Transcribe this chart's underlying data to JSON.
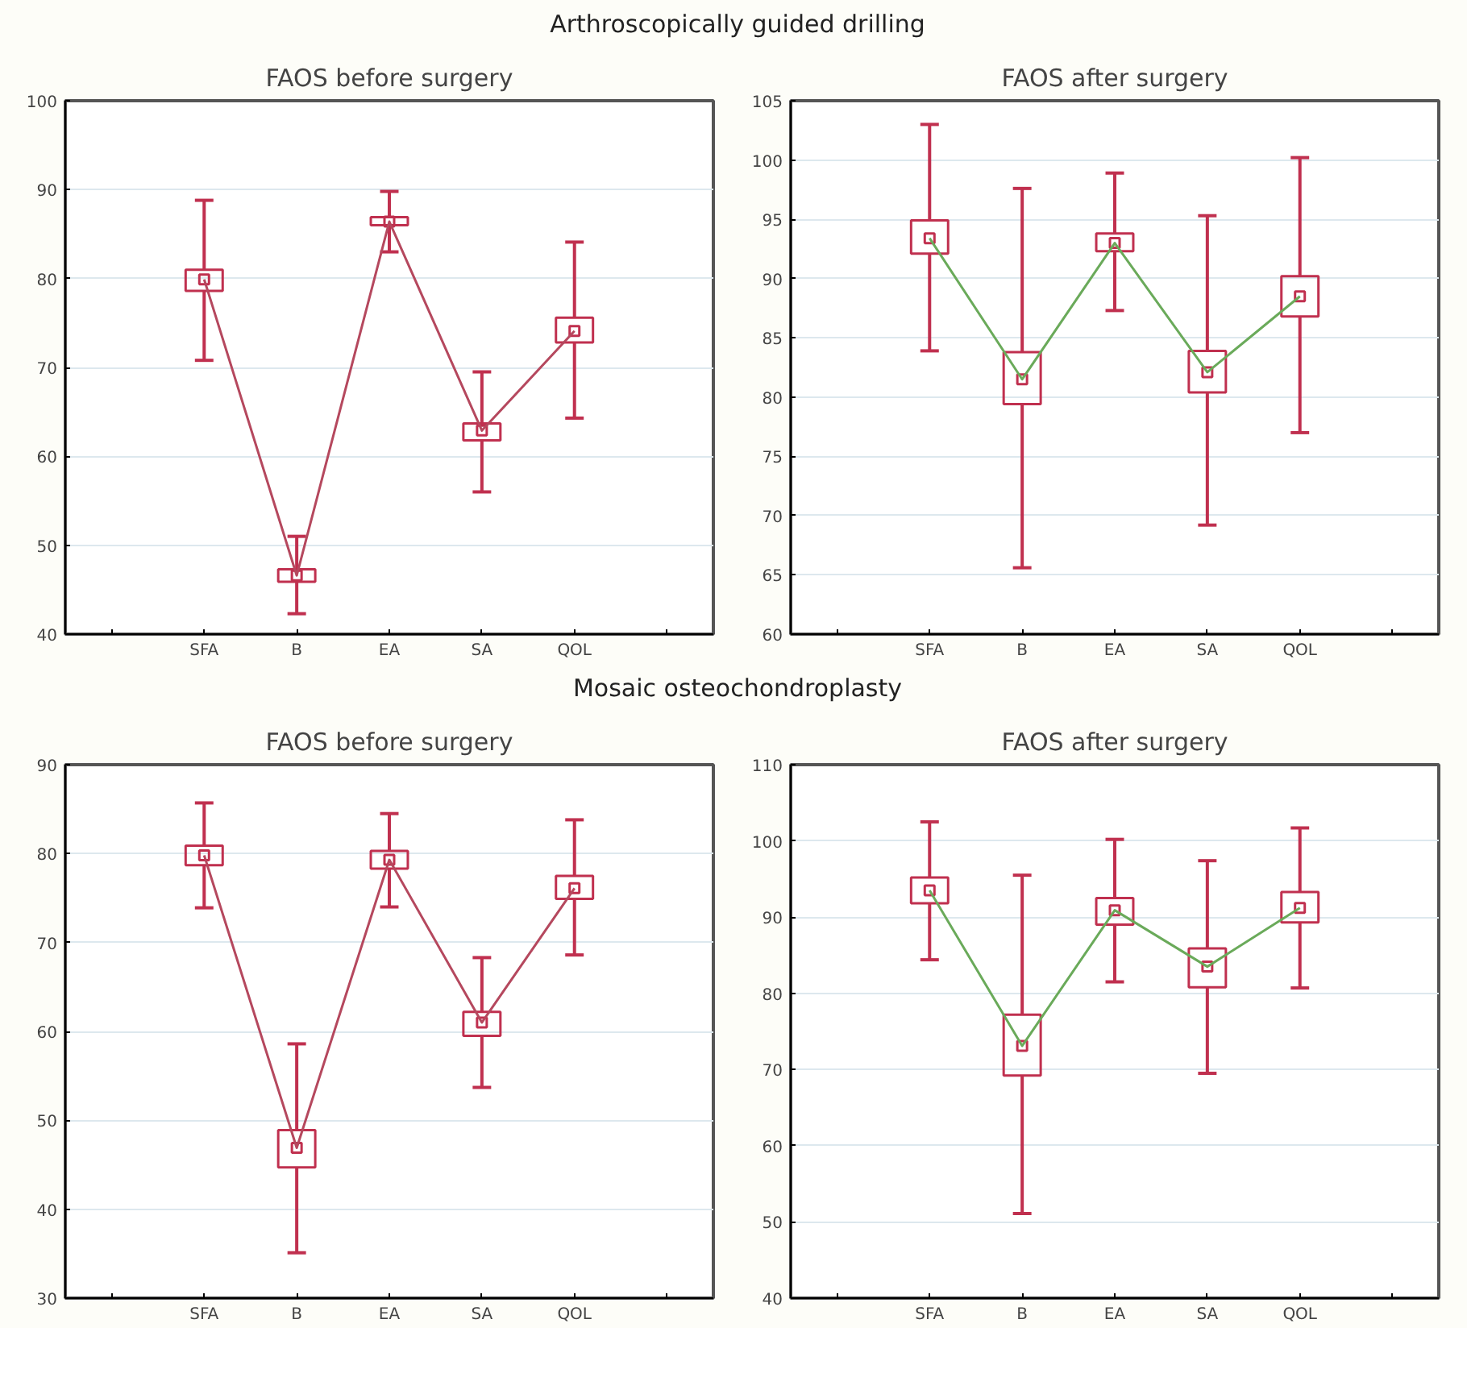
{
  "chart_data": [
    {
      "type": "box",
      "subtitle": "Arthroscopically guided drilling",
      "title": "FAOS before surgery",
      "categories": [
        null,
        "SFA",
        "B",
        "EA",
        "SA",
        "QOL",
        null
      ],
      "ylim": [
        40,
        100
      ],
      "yticks": [
        40,
        50,
        60,
        70,
        80,
        90,
        100
      ],
      "grid": "y",
      "series": [
        {
          "color": "#c0304f",
          "boxes": [
            null,
            {
              "low": 70.8,
              "q1": 78.6,
              "median": 79.9,
              "q3": 81.0,
              "high": 88.8
            },
            {
              "low": 42.3,
              "q1": 45.9,
              "median": 46.6,
              "q3": 47.3,
              "high": 51.0
            },
            {
              "low": 83.0,
              "q1": 86.0,
              "median": 86.4,
              "q3": 86.9,
              "high": 89.8
            },
            {
              "low": 56.0,
              "q1": 61.8,
              "median": 62.9,
              "q3": 63.7,
              "high": 69.5
            },
            {
              "low": 64.3,
              "q1": 72.8,
              "median": 74.1,
              "q3": 75.6,
              "high": 84.1
            },
            null
          ]
        },
        {
          "type": "line",
          "color": "#b5485e",
          "values": [
            null,
            79.9,
            46.6,
            86.4,
            62.9,
            74.1,
            null
          ]
        }
      ]
    },
    {
      "type": "box",
      "title": "FAOS after surgery",
      "categories": [
        null,
        "SFA",
        "B",
        "EA",
        "SA",
        "QOL",
        null
      ],
      "ylim": [
        60,
        105
      ],
      "yticks": [
        60,
        65,
        70,
        75,
        80,
        85,
        90,
        95,
        100,
        105
      ],
      "grid": "y",
      "series": [
        {
          "color": "#c0304f",
          "boxes": [
            null,
            {
              "low": 83.9,
              "q1": 92.1,
              "median": 93.4,
              "q3": 94.9,
              "high": 103.0
            },
            {
              "low": 65.6,
              "q1": 79.4,
              "median": 81.5,
              "q3": 83.8,
              "high": 97.6
            },
            {
              "low": 87.3,
              "q1": 92.3,
              "median": 93.0,
              "q3": 93.8,
              "high": 98.9
            },
            {
              "low": 69.2,
              "q1": 80.4,
              "median": 82.1,
              "q3": 83.9,
              "high": 95.3
            },
            {
              "low": 77.0,
              "q1": 86.8,
              "median": 88.5,
              "q3": 90.2,
              "high": 100.2
            },
            null
          ]
        },
        {
          "type": "line",
          "color": "#6aaa5a",
          "values": [
            null,
            93.4,
            81.5,
            93.0,
            82.1,
            88.5,
            null
          ]
        }
      ]
    },
    {
      "type": "box",
      "subtitle": "Mosaic osteochondroplasty",
      "title": "FAOS before surgery",
      "categories": [
        null,
        "SFA",
        "B",
        "EA",
        "SA",
        "QOL",
        null
      ],
      "ylim": [
        30,
        90
      ],
      "yticks": [
        30,
        40,
        50,
        60,
        70,
        80,
        90
      ],
      "grid": "y",
      "series": [
        {
          "color": "#c0304f",
          "boxes": [
            null,
            {
              "low": 73.9,
              "q1": 78.7,
              "median": 79.8,
              "q3": 80.9,
              "high": 85.7
            },
            {
              "low": 35.1,
              "q1": 44.7,
              "median": 46.9,
              "q3": 48.9,
              "high": 58.6
            },
            {
              "low": 74.0,
              "q1": 78.3,
              "median": 79.3,
              "q3": 80.3,
              "high": 84.5
            },
            {
              "low": 53.7,
              "q1": 59.5,
              "median": 61.0,
              "q3": 62.2,
              "high": 68.3
            },
            {
              "low": 68.6,
              "q1": 74.9,
              "median": 76.1,
              "q3": 77.5,
              "high": 83.8
            },
            null
          ]
        },
        {
          "type": "line",
          "color": "#b5485e",
          "values": [
            null,
            79.8,
            46.9,
            79.3,
            61.0,
            76.1,
            null
          ]
        }
      ]
    },
    {
      "type": "box",
      "title": "FAOS after surgery",
      "categories": [
        null,
        "SFA",
        "B",
        "EA",
        "SA",
        "QOL",
        null
      ],
      "ylim": [
        40,
        110
      ],
      "yticks": [
        40,
        50,
        60,
        70,
        80,
        90,
        100,
        110
      ],
      "grid": "y",
      "series": [
        {
          "color": "#c0304f",
          "boxes": [
            null,
            {
              "low": 84.4,
              "q1": 91.8,
              "median": 93.5,
              "q3": 95.2,
              "high": 102.5
            },
            {
              "low": 51.1,
              "q1": 69.2,
              "median": 73.1,
              "q3": 77.2,
              "high": 95.5
            },
            {
              "low": 81.5,
              "q1": 89.0,
              "median": 90.9,
              "q3": 92.5,
              "high": 100.2
            },
            {
              "low": 69.5,
              "q1": 80.8,
              "median": 83.5,
              "q3": 85.9,
              "high": 97.4
            },
            {
              "low": 80.7,
              "q1": 89.3,
              "median": 91.2,
              "q3": 93.3,
              "high": 101.7
            },
            null
          ]
        },
        {
          "type": "line",
          "color": "#6aaa5a",
          "values": [
            null,
            93.5,
            73.1,
            90.9,
            83.5,
            91.2,
            null
          ]
        }
      ]
    }
  ]
}
